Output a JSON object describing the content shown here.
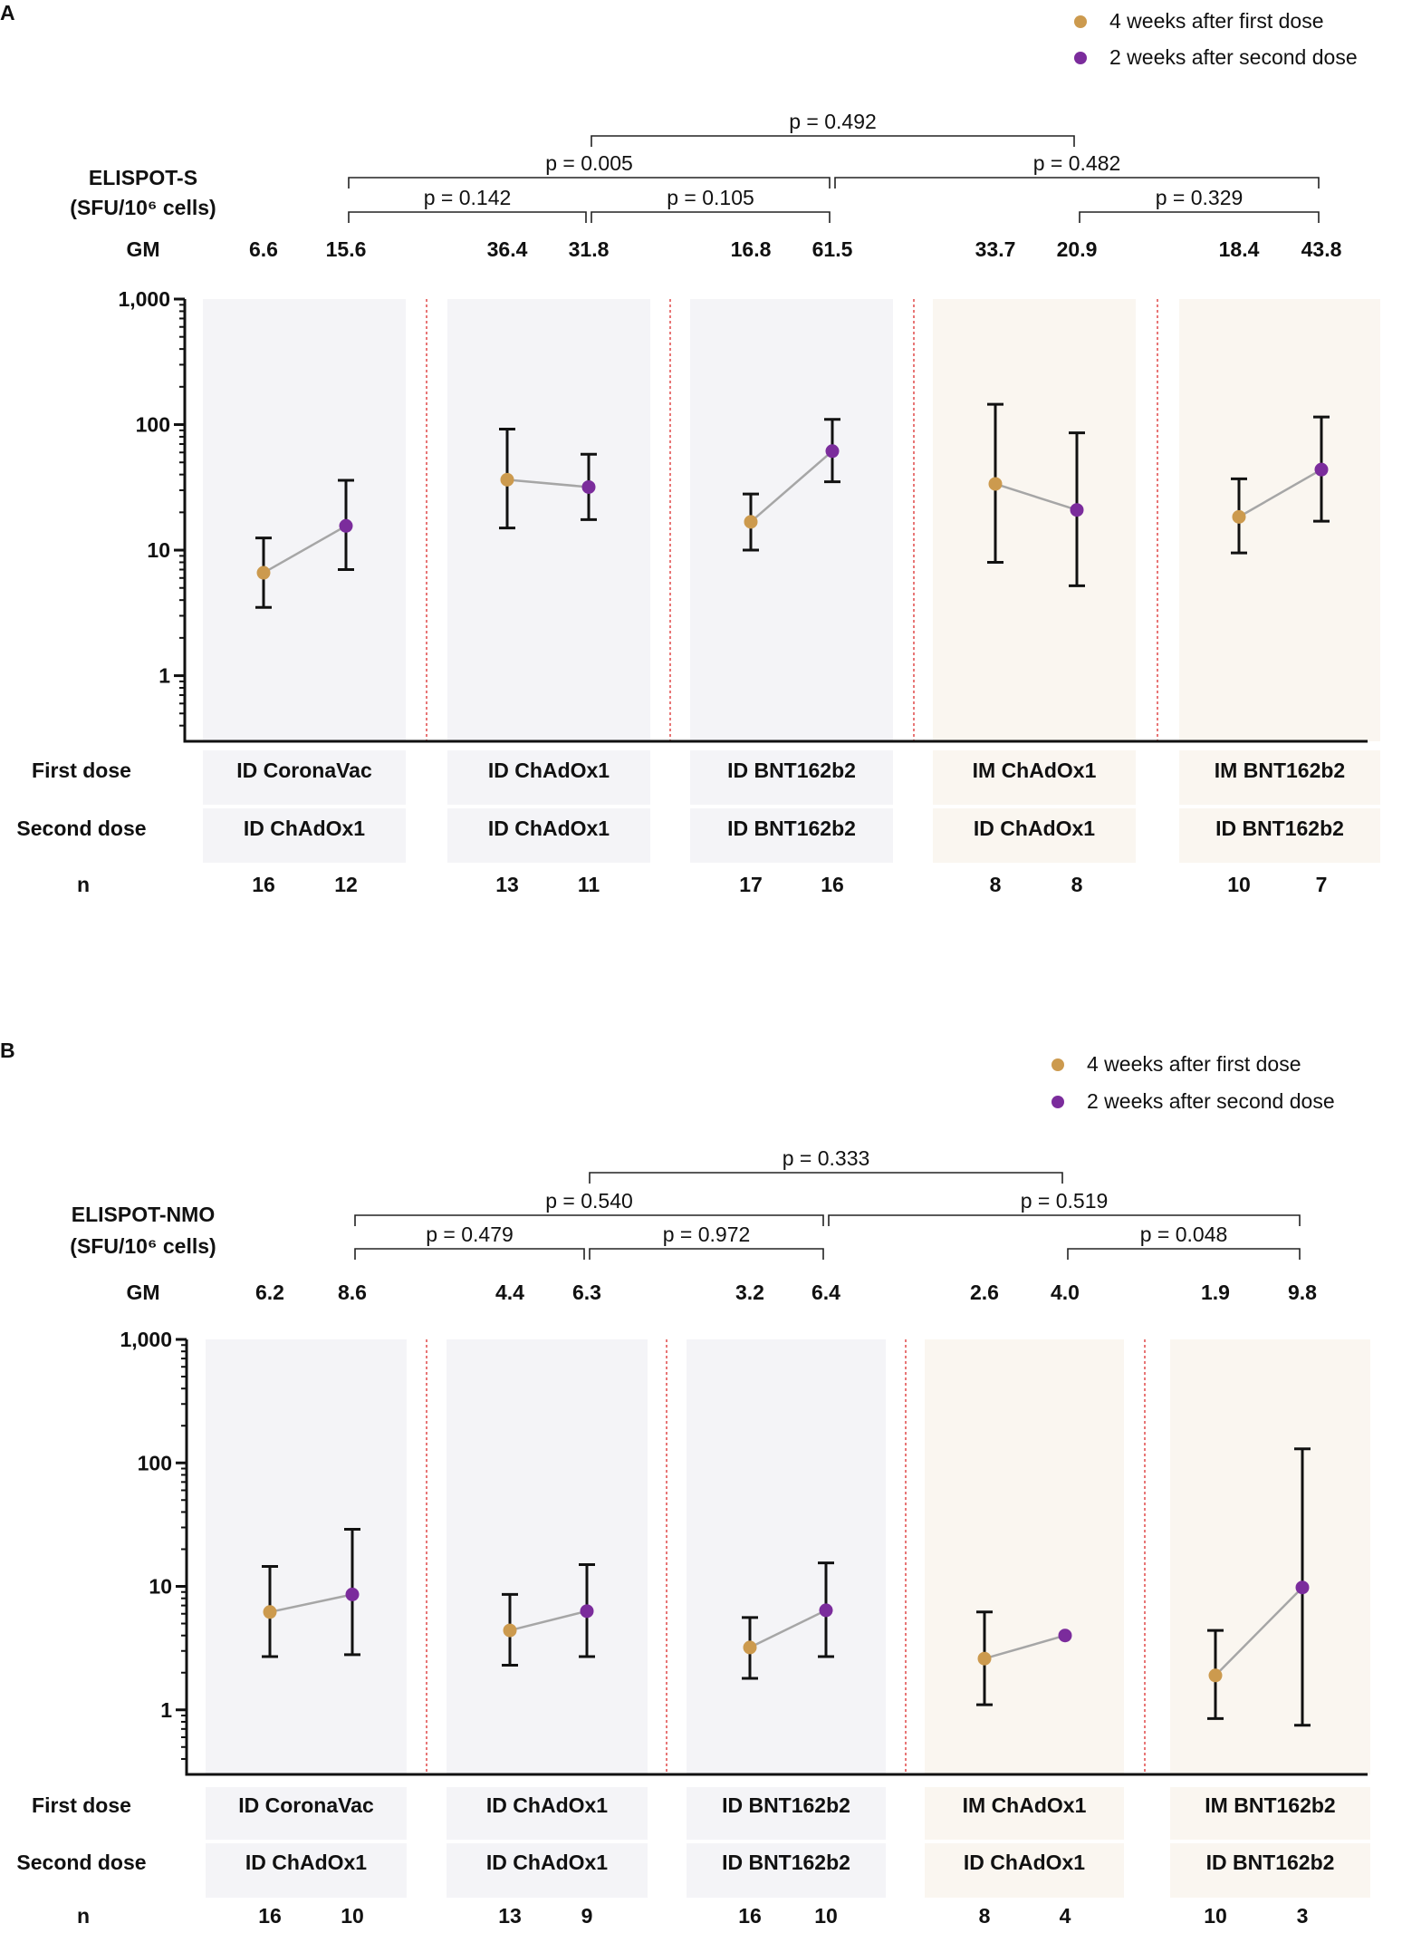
{
  "colors": {
    "first": "#CC9A4E",
    "second": "#7B2C9C",
    "panel_id": "#F4F4F7",
    "panel_im": "#FAF6F0",
    "divider": "#E04848",
    "line": "#A6A6A6"
  },
  "chart_data": [
    {
      "type": "scatter",
      "panel_label": "A",
      "title": "ELISPOT-S",
      "ylabel": "(SFU/10⁶ cells)",
      "yscale": "log",
      "ylim": [
        0.3,
        1000
      ],
      "yticks": [
        "1",
        "10",
        "100",
        "1,000"
      ],
      "gm_label": "GM",
      "first_row_label": "First dose",
      "second_row_label": "Second dose",
      "n_label": "n",
      "legend": {
        "first": "4 weeks after first dose",
        "second": "2 weeks after second dose",
        "position": "top-right"
      },
      "groups": [
        {
          "first_dose": "ID CoronaVac",
          "second_dose": "ID ChAdOx1",
          "route": "ID",
          "gm_first": "6.6",
          "gm_second": "15.6",
          "n_first": "16",
          "n_second": "12",
          "first": {
            "gm": 6.6,
            "lo": 3.5,
            "hi": 12.5
          },
          "second": {
            "gm": 15.6,
            "lo": 7,
            "hi": 36
          }
        },
        {
          "first_dose": "ID ChAdOx1",
          "second_dose": "ID ChAdOx1",
          "route": "ID",
          "gm_first": "36.4",
          "gm_second": "31.8",
          "n_first": "13",
          "n_second": "11",
          "first": {
            "gm": 36.4,
            "lo": 15,
            "hi": 92
          },
          "second": {
            "gm": 31.8,
            "lo": 17.5,
            "hi": 58
          }
        },
        {
          "first_dose": "ID BNT162b2",
          "second_dose": "ID BNT162b2",
          "route": "ID",
          "gm_first": "16.8",
          "gm_second": "61.5",
          "n_first": "17",
          "n_second": "16",
          "first": {
            "gm": 16.8,
            "lo": 10,
            "hi": 28
          },
          "second": {
            "gm": 61.5,
            "lo": 35,
            "hi": 110
          }
        },
        {
          "first_dose": "IM ChAdOx1",
          "second_dose": "ID ChAdOx1",
          "route": "IM",
          "gm_first": "33.7",
          "gm_second": "20.9",
          "n_first": "8",
          "n_second": "8",
          "first": {
            "gm": 33.7,
            "lo": 8,
            "hi": 145
          },
          "second": {
            "gm": 20.9,
            "lo": 5.2,
            "hi": 86
          }
        },
        {
          "first_dose": "IM BNT162b2",
          "second_dose": "ID BNT162b2",
          "route": "IM",
          "gm_first": "18.4",
          "gm_second": "43.8",
          "n_first": "10",
          "n_second": "7",
          "first": {
            "gm": 18.4,
            "lo": 9.5,
            "hi": 37
          },
          "second": {
            "gm": 43.8,
            "lo": 17,
            "hi": 115
          }
        }
      ],
      "pvalues": [
        {
          "label": "p = 0.492",
          "from": [
            1,
            "second"
          ],
          "to": [
            3,
            "second"
          ],
          "tier": 3
        },
        {
          "label": "p = 0.005",
          "from": [
            0,
            "second"
          ],
          "to": [
            2,
            "second"
          ],
          "tier": 2
        },
        {
          "label": "p = 0.482",
          "from": [
            2,
            "second"
          ],
          "to": [
            4,
            "second"
          ],
          "tier": 2
        },
        {
          "label": "p = 0.142",
          "from": [
            0,
            "second"
          ],
          "to": [
            1,
            "second"
          ],
          "tier": 1
        },
        {
          "label": "p = 0.105",
          "from": [
            1,
            "second"
          ],
          "to": [
            2,
            "second"
          ],
          "tier": 1
        },
        {
          "label": "p = 0.329",
          "from": [
            3,
            "second"
          ],
          "to": [
            4,
            "second"
          ],
          "tier": 1
        }
      ]
    },
    {
      "type": "scatter",
      "panel_label": "B",
      "title": "ELISPOT-NMO",
      "ylabel": "(SFU/10⁶ cells)",
      "yscale": "log",
      "ylim": [
        0.3,
        1000
      ],
      "yticks": [
        "1",
        "10",
        "100",
        "1,000"
      ],
      "gm_label": "GM",
      "first_row_label": "First dose",
      "second_row_label": "Second dose",
      "n_label": "n",
      "legend": {
        "first": "4 weeks after first dose",
        "second": "2 weeks after second dose",
        "position": "top-right"
      },
      "groups": [
        {
          "first_dose": "ID CoronaVac",
          "second_dose": "ID ChAdOx1",
          "route": "ID",
          "gm_first": "6.2",
          "gm_second": "8.6",
          "n_first": "16",
          "n_second": "10",
          "first": {
            "gm": 6.2,
            "lo": 2.7,
            "hi": 14.5
          },
          "second": {
            "gm": 8.6,
            "lo": 2.8,
            "hi": 29
          }
        },
        {
          "first_dose": "ID ChAdOx1",
          "second_dose": "ID ChAdOx1",
          "route": "ID",
          "gm_first": "4.4",
          "gm_second": "6.3",
          "n_first": "13",
          "n_second": "9",
          "first": {
            "gm": 4.4,
            "lo": 2.3,
            "hi": 8.6
          },
          "second": {
            "gm": 6.3,
            "lo": 2.7,
            "hi": 15
          }
        },
        {
          "first_dose": "ID BNT162b2",
          "second_dose": "ID BNT162b2",
          "route": "ID",
          "gm_first": "3.2",
          "gm_second": "6.4",
          "n_first": "16",
          "n_second": "10",
          "first": {
            "gm": 3.2,
            "lo": 1.8,
            "hi": 5.6
          },
          "second": {
            "gm": 6.4,
            "lo": 2.7,
            "hi": 15.5
          }
        },
        {
          "first_dose": "IM ChAdOx1",
          "second_dose": "ID ChAdOx1",
          "route": "IM",
          "gm_first": "2.6",
          "gm_second": "4.0",
          "n_first": "8",
          "n_second": "4",
          "first": {
            "gm": 2.6,
            "lo": 1.1,
            "hi": 6.2
          },
          "second": {
            "gm": 4.0,
            "lo": null,
            "hi": null
          }
        },
        {
          "first_dose": "IM BNT162b2",
          "second_dose": "ID BNT162b2",
          "route": "IM",
          "gm_first": "1.9",
          "gm_second": "9.8",
          "n_first": "10",
          "n_second": "3",
          "first": {
            "gm": 1.9,
            "lo": 0.85,
            "hi": 4.4
          },
          "second": {
            "gm": 9.8,
            "lo": 0.75,
            "hi": 130
          }
        }
      ],
      "pvalues": [
        {
          "label": "p = 0.333",
          "from": [
            1,
            "second"
          ],
          "to": [
            3,
            "second"
          ],
          "tier": 3
        },
        {
          "label": "p = 0.540",
          "from": [
            0,
            "second"
          ],
          "to": [
            2,
            "second"
          ],
          "tier": 2
        },
        {
          "label": "p = 0.519",
          "from": [
            2,
            "second"
          ],
          "to": [
            4,
            "second"
          ],
          "tier": 2
        },
        {
          "label": "p = 0.479",
          "from": [
            0,
            "second"
          ],
          "to": [
            1,
            "second"
          ],
          "tier": 1
        },
        {
          "label": "p = 0.972",
          "from": [
            1,
            "second"
          ],
          "to": [
            2,
            "second"
          ],
          "tier": 1
        },
        {
          "label": "p = 0.048",
          "from": [
            3,
            "second"
          ],
          "to": [
            4,
            "second"
          ],
          "tier": 1
        }
      ]
    }
  ]
}
